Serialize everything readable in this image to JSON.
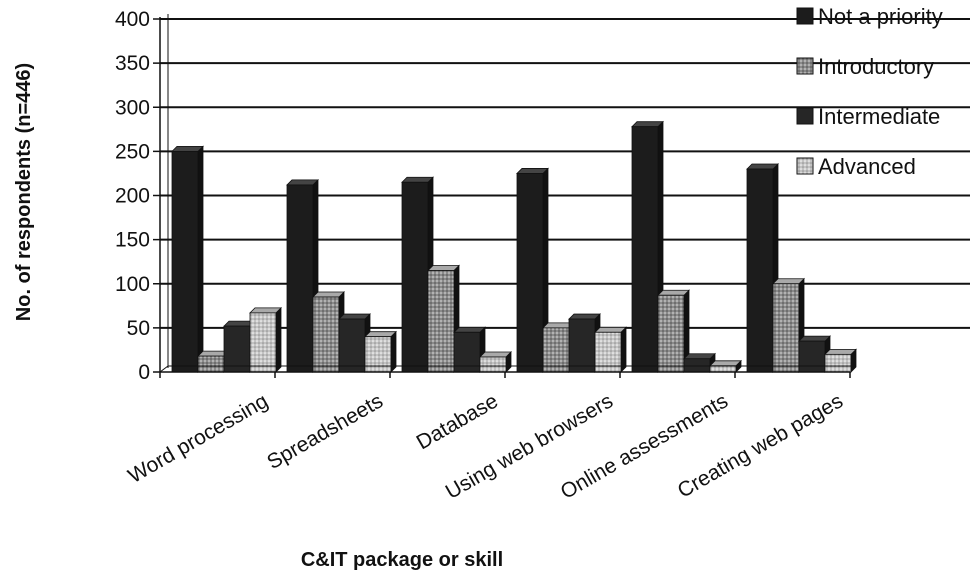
{
  "chart_data": {
    "type": "bar",
    "xlabel": "C&IT package or skill",
    "ylabel": "No. of respondents (n=446)",
    "ylim": [
      0,
      400
    ],
    "yticks": [
      0,
      50,
      100,
      150,
      200,
      250,
      300,
      350,
      400
    ],
    "grid": true,
    "legend_position": "top-right",
    "categories": [
      "Word processing",
      "Spreadsheets",
      "Database",
      "Using web browsers",
      "Online assessments",
      "Creating web pages"
    ],
    "series": [
      {
        "name": "Not a priority",
        "values": [
          250,
          212,
          215,
          225,
          278,
          230
        ],
        "color": "#1c1c1c",
        "pattern": "solid"
      },
      {
        "name": "Introductory",
        "values": [
          18,
          85,
          115,
          50,
          87,
          100
        ],
        "color": "#8a8a8a",
        "pattern": "dots"
      },
      {
        "name": "Intermediate",
        "values": [
          52,
          60,
          45,
          60,
          15,
          35
        ],
        "color": "#262626",
        "pattern": "solid"
      },
      {
        "name": "Advanced",
        "values": [
          67,
          40,
          17,
          45,
          7,
          20
        ],
        "color": "#c2c2c2",
        "pattern": "dots"
      }
    ]
  }
}
